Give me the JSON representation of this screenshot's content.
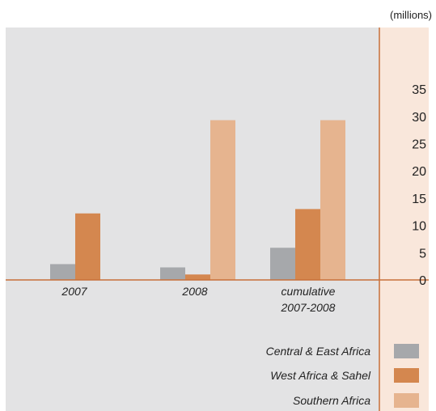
{
  "chart_data": {
    "type": "bar",
    "unit_label": "(millions)",
    "categories": [
      [
        "2007"
      ],
      [
        "2008"
      ],
      [
        "cumulative",
        "2007-2008"
      ]
    ],
    "series": [
      {
        "name": "Central & East Africa",
        "values": [
          2.9,
          2.3,
          5.9
        ],
        "color": "#a6a8ab"
      },
      {
        "name": "West Africa & Sahel",
        "values": [
          12.2,
          1.0,
          13.0
        ],
        "color": "#d4874f"
      },
      {
        "name": "Southern Africa",
        "values": [
          0,
          29.3,
          29.3
        ],
        "color": "#e6b48f"
      }
    ],
    "ylim": [
      0,
      35
    ],
    "yticks": [
      "0",
      "5",
      "10",
      "15",
      "20",
      "25",
      "30",
      "35"
    ],
    "legend_position": "bottom-right",
    "plot_background": "#e3e3e4",
    "axis_background": "#f9e7db",
    "axis_line_color": "#c8703a"
  }
}
